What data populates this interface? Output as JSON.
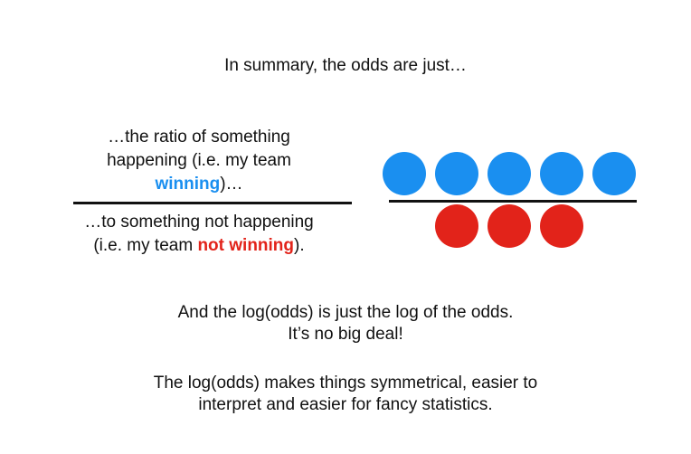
{
  "title": "In summary, the odds are just…",
  "fraction": {
    "numerator_line1": "…the ratio of something",
    "numerator_line2": "happening (i.e. my team",
    "numerator_highlight": "winning",
    "numerator_tail": ")…",
    "denominator_line1": "…to something not happening",
    "denominator_prefix": "(i.e. my team ",
    "denominator_highlight": "not winning",
    "denominator_tail": ")."
  },
  "dots": {
    "winning_count": 5,
    "losing_count": 3,
    "winning_color": "#1a8ff0",
    "losing_color": "#e2231a"
  },
  "summary": {
    "line1": "And the log(odds) is just the log of the odds.",
    "line2": "It’s no big deal!",
    "line3": "The log(odds) makes things symmetrical, easier to",
    "line4": "interpret and easier for fancy statistics."
  },
  "colors": {
    "win": "#1a8ff0",
    "lose": "#e2231a",
    "text": "#111111"
  }
}
